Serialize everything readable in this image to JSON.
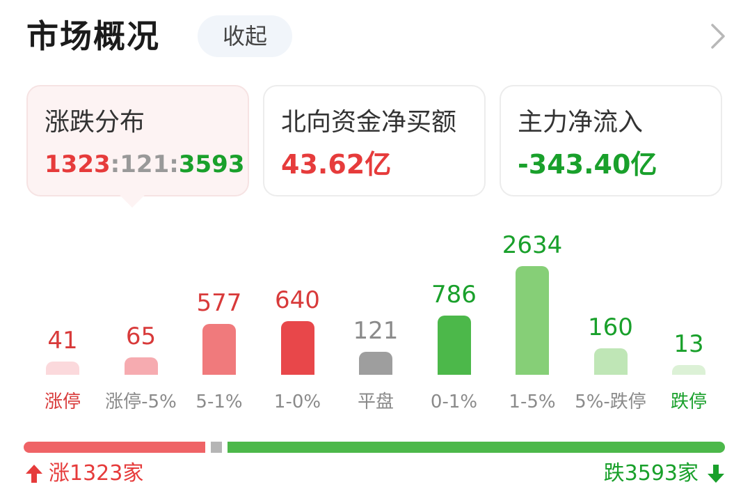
{
  "header": {
    "title": "市场概况",
    "collapse_label": "收起",
    "chevron_icon": "chevron-right-icon"
  },
  "cards": {
    "distribution": {
      "label": "涨跌分布",
      "up": "1323",
      "sep1": ":",
      "flat": "121",
      "sep2": ":",
      "down": "3593"
    },
    "northbound": {
      "label": "北向资金净买额",
      "value": "43.62亿"
    },
    "main_flow": {
      "label": "主力净流入",
      "value": "-343.40亿"
    }
  },
  "chart_data": {
    "type": "bar",
    "categories": [
      "涨停",
      "涨停-5%",
      "5-1%",
      "1-0%",
      "平盘",
      "0-1%",
      "1-5%",
      "5%-跌停",
      "跌停"
    ],
    "values": [
      41,
      65,
      577,
      640,
      121,
      786,
      2634,
      160,
      13
    ],
    "value_labels": [
      "41",
      "65",
      "577",
      "640",
      "121",
      "786",
      "2634",
      "160",
      "13"
    ],
    "colors": [
      "#fbd9dc",
      "#f6abb0",
      "#f07a7c",
      "#e8474a",
      "#9e9e9e",
      "#4cb84a",
      "#86cf77",
      "#bfe6b6",
      "#dcf1d6"
    ],
    "label_colors": [
      "#d83a3a",
      "#d83a3a",
      "#d83a3a",
      "#d83a3a",
      "#8a8a8a",
      "#19a02b",
      "#19a02b",
      "#19a02b",
      "#19a02b"
    ],
    "category_colors": [
      "#d83a3a",
      "#8a8a8a",
      "#8a8a8a",
      "#8a8a8a",
      "#8a8a8a",
      "#8a8a8a",
      "#8a8a8a",
      "#8a8a8a",
      "#19a02b"
    ],
    "ylim": [
      0,
      2634
    ]
  },
  "footer": {
    "up_label": "涨1323家",
    "down_label": "跌3593家",
    "up_count": 1323,
    "flat_count": 121,
    "down_count": 3593,
    "up_color": "#ef6366",
    "flat_color": "#b5b5b5",
    "down_color": "#4cb84a",
    "up_icon": "arrow-up-icon",
    "down_icon": "arrow-down-icon"
  }
}
